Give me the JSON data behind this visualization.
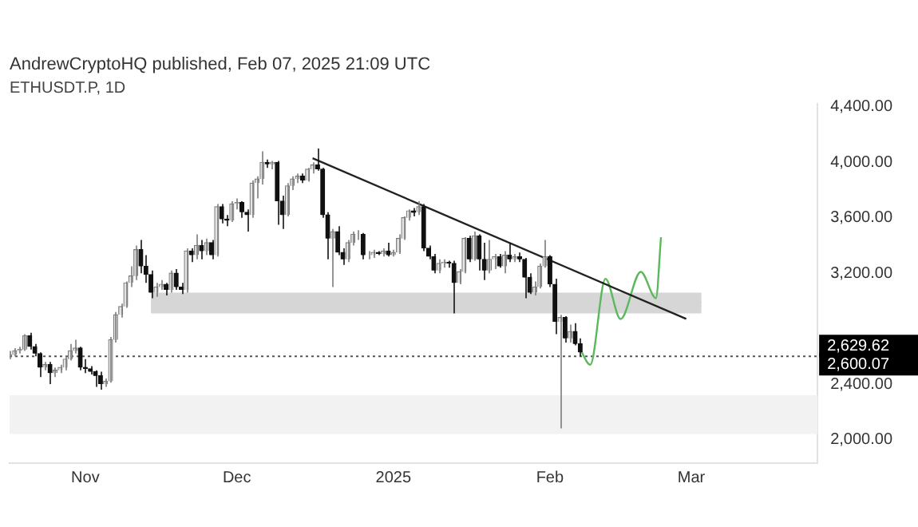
{
  "chart_data": {
    "type": "candlestick",
    "title": "AndrewCryptoHQ published, Feb 07, 2025 21:09 UTC",
    "subtitle": "ETHUSDT.P, 1D",
    "x": [
      "2024-10-17",
      "2024-10-18",
      "2024-10-19",
      "2024-10-20",
      "2024-10-21",
      "2024-10-22",
      "2024-10-23",
      "2024-10-24",
      "2024-10-25",
      "2024-10-26",
      "2024-10-27",
      "2024-10-28",
      "2024-10-29",
      "2024-10-30",
      "2024-10-31",
      "2024-11-01",
      "2024-11-02",
      "2024-11-03",
      "2024-11-04",
      "2024-11-05",
      "2024-11-06",
      "2024-11-07",
      "2024-11-08",
      "2024-11-09",
      "2024-11-10",
      "2024-11-11",
      "2024-11-12",
      "2024-11-13",
      "2024-11-14",
      "2024-11-15",
      "2024-11-16",
      "2024-11-17",
      "2024-11-18",
      "2024-11-19",
      "2024-11-20",
      "2024-11-21",
      "2024-11-22",
      "2024-11-23",
      "2024-11-24",
      "2024-11-25",
      "2024-11-26",
      "2024-11-27",
      "2024-11-28",
      "2024-11-29",
      "2024-11-30",
      "2024-12-01",
      "2024-12-02",
      "2024-12-03",
      "2024-12-04",
      "2024-12-05",
      "2024-12-06",
      "2024-12-07",
      "2024-12-08",
      "2024-12-09",
      "2024-12-10",
      "2024-12-11",
      "2024-12-12",
      "2024-12-13",
      "2024-12-14",
      "2024-12-15",
      "2024-12-16",
      "2024-12-17",
      "2024-12-18",
      "2024-12-19",
      "2024-12-20",
      "2024-12-21",
      "2024-12-22",
      "2024-12-23",
      "2024-12-24",
      "2024-12-25",
      "2024-12-26",
      "2024-12-27",
      "2024-12-28",
      "2024-12-29",
      "2024-12-30",
      "2024-12-31",
      "2025-01-01",
      "2025-01-02",
      "2025-01-03",
      "2025-01-04",
      "2025-01-05",
      "2025-01-06",
      "2025-01-07",
      "2025-01-08",
      "2025-01-09",
      "2025-01-10",
      "2025-01-11",
      "2025-01-12",
      "2025-01-13",
      "2025-01-14",
      "2025-01-15",
      "2025-01-16",
      "2025-01-17",
      "2025-01-18",
      "2025-01-19",
      "2025-01-20",
      "2025-01-21",
      "2025-01-22",
      "2025-01-23",
      "2025-01-24",
      "2025-01-25",
      "2025-01-26",
      "2025-01-27",
      "2025-01-28",
      "2025-01-29",
      "2025-01-30",
      "2025-01-31",
      "2025-02-01",
      "2025-02-02",
      "2025-02-03",
      "2025-02-04",
      "2025-02-05",
      "2025-02-06",
      "2025-02-07"
    ],
    "ohlc": [
      [
        2600,
        2640,
        2580,
        2610
      ],
      [
        2610,
        2660,
        2600,
        2640
      ],
      [
        2640,
        2670,
        2620,
        2650
      ],
      [
        2650,
        2760,
        2640,
        2750
      ],
      [
        2750,
        2770,
        2650,
        2670
      ],
      [
        2670,
        2690,
        2600,
        2620
      ],
      [
        2620,
        2630,
        2450,
        2520
      ],
      [
        2520,
        2560,
        2500,
        2540
      ],
      [
        2540,
        2560,
        2400,
        2480
      ],
      [
        2480,
        2520,
        2450,
        2500
      ],
      [
        2500,
        2540,
        2480,
        2520
      ],
      [
        2520,
        2600,
        2500,
        2580
      ],
      [
        2580,
        2690,
        2570,
        2640
      ],
      [
        2640,
        2720,
        2620,
        2660
      ],
      [
        2660,
        2670,
        2500,
        2520
      ],
      [
        2520,
        2580,
        2480,
        2510
      ],
      [
        2510,
        2530,
        2470,
        2490
      ],
      [
        2490,
        2500,
        2380,
        2460
      ],
      [
        2460,
        2490,
        2360,
        2400
      ],
      [
        2400,
        2440,
        2380,
        2420
      ],
      [
        2420,
        2740,
        2410,
        2720
      ],
      [
        2720,
        2920,
        2700,
        2900
      ],
      [
        2900,
        2980,
        2880,
        2960
      ],
      [
        2960,
        3140,
        2950,
        3130
      ],
      [
        3130,
        3250,
        3100,
        3180
      ],
      [
        3180,
        3400,
        3150,
        3370
      ],
      [
        3370,
        3440,
        3200,
        3250
      ],
      [
        3250,
        3330,
        3130,
        3190
      ],
      [
        3190,
        3220,
        3020,
        3060
      ],
      [
        3060,
        3130,
        3030,
        3100
      ],
      [
        3100,
        3150,
        3080,
        3120
      ],
      [
        3120,
        3130,
        3040,
        3080
      ],
      [
        3080,
        3220,
        3060,
        3200
      ],
      [
        3200,
        3230,
        3080,
        3100
      ],
      [
        3100,
        3130,
        3050,
        3080
      ],
      [
        3080,
        3380,
        3060,
        3360
      ],
      [
        3360,
        3380,
        3280,
        3330
      ],
      [
        3330,
        3480,
        3300,
        3400
      ],
      [
        3400,
        3440,
        3300,
        3360
      ],
      [
        3360,
        3450,
        3330,
        3420
      ],
      [
        3420,
        3440,
        3300,
        3330
      ],
      [
        3330,
        3700,
        3320,
        3680
      ],
      [
        3680,
        3700,
        3560,
        3590
      ],
      [
        3590,
        3620,
        3540,
        3580
      ],
      [
        3580,
        3720,
        3570,
        3700
      ],
      [
        3700,
        3740,
        3660,
        3710
      ],
      [
        3710,
        3720,
        3600,
        3640
      ],
      [
        3640,
        3660,
        3500,
        3620
      ],
      [
        3620,
        3870,
        3600,
        3850
      ],
      [
        3850,
        3900,
        3740,
        3880
      ],
      [
        3880,
        4080,
        3840,
        4000
      ],
      [
        4000,
        4020,
        3960,
        3990
      ],
      [
        3990,
        4010,
        3950,
        4000
      ],
      [
        4000,
        4010,
        3550,
        3720
      ],
      [
        3720,
        3760,
        3520,
        3620
      ],
      [
        3620,
        3850,
        3610,
        3830
      ],
      [
        3830,
        3900,
        3800,
        3880
      ],
      [
        3880,
        3920,
        3850,
        3900
      ],
      [
        3900,
        3920,
        3850,
        3870
      ],
      [
        3870,
        3960,
        3860,
        3950
      ],
      [
        3950,
        4000,
        3920,
        3980
      ],
      [
        3980,
        4100,
        3940,
        3950
      ],
      [
        3950,
        3960,
        3600,
        3620
      ],
      [
        3620,
        3640,
        3300,
        3450
      ],
      [
        3450,
        3520,
        3100,
        3500
      ],
      [
        3500,
        3540,
        3330,
        3350
      ],
      [
        3350,
        3380,
        3260,
        3300
      ],
      [
        3300,
        3440,
        3280,
        3420
      ],
      [
        3420,
        3500,
        3400,
        3480
      ],
      [
        3480,
        3510,
        3440,
        3480
      ],
      [
        3480,
        3490,
        3300,
        3330
      ],
      [
        3330,
        3360,
        3300,
        3330
      ],
      [
        3330,
        3370,
        3310,
        3350
      ],
      [
        3350,
        3360,
        3330,
        3340
      ],
      [
        3340,
        3380,
        3320,
        3360
      ],
      [
        3360,
        3420,
        3320,
        3330
      ],
      [
        3330,
        3370,
        3320,
        3350
      ],
      [
        3350,
        3480,
        3340,
        3450
      ],
      [
        3450,
        3610,
        3440,
        3600
      ],
      [
        3600,
        3660,
        3580,
        3650
      ],
      [
        3650,
        3670,
        3610,
        3640
      ],
      [
        3640,
        3720,
        3620,
        3680
      ],
      [
        3680,
        3700,
        3360,
        3380
      ],
      [
        3380,
        3400,
        3300,
        3320
      ],
      [
        3320,
        3340,
        3200,
        3220
      ],
      [
        3220,
        3300,
        3200,
        3270
      ],
      [
        3270,
        3300,
        3240,
        3280
      ],
      [
        3280,
        3290,
        3240,
        3270
      ],
      [
        3270,
        3290,
        2910,
        3130
      ],
      [
        3130,
        3230,
        3120,
        3210
      ],
      [
        3210,
        3460,
        3200,
        3450
      ],
      [
        3450,
        3470,
        3280,
        3300
      ],
      [
        3300,
        3500,
        3290,
        3470
      ],
      [
        3470,
        3480,
        3220,
        3300
      ],
      [
        3300,
        3420,
        3150,
        3220
      ],
      [
        3220,
        3440,
        3200,
        3300
      ],
      [
        3300,
        3340,
        3230,
        3320
      ],
      [
        3320,
        3340,
        3240,
        3250
      ],
      [
        3250,
        3360,
        3200,
        3330
      ],
      [
        3330,
        3420,
        3280,
        3300
      ],
      [
        3300,
        3340,
        3280,
        3320
      ],
      [
        3320,
        3350,
        3280,
        3300
      ],
      [
        3300,
        3310,
        3020,
        3170
      ],
      [
        3170,
        3200,
        3050,
        3060
      ],
      [
        3060,
        3140,
        3040,
        3100
      ],
      [
        3100,
        3270,
        3090,
        3250
      ],
      [
        3250,
        3440,
        3240,
        3320
      ],
      [
        3320,
        3330,
        3100,
        3120
      ],
      [
        3120,
        3160,
        2760,
        2850
      ],
      [
        2850,
        2900,
        2080,
        2880
      ],
      [
        2880,
        2890,
        2700,
        2730
      ],
      [
        2730,
        2830,
        2700,
        2780
      ],
      [
        2780,
        2840,
        2680,
        2690
      ],
      [
        2690,
        2730,
        2600,
        2629.62
      ]
    ],
    "series": [
      {
        "type": "line",
        "x": [
          "2024-11-14",
          "2025-03-03"
        ],
        "values": [
          2990,
          2990
        ],
        "lower": [
          2910,
          2910
        ],
        "upper": [
          3060,
          3060
        ],
        "color": "#d6d6d6"
      },
      {
        "type": "line",
        "x": [
          "2024-12-16",
          "2025-02-28"
        ],
        "values": [
          4030,
          2870
        ],
        "color": "#222222"
      },
      {
        "type": "line",
        "x": [
          "2025-02-07",
          "2025-02-09",
          "2025-02-12",
          "2025-02-15",
          "2025-02-19",
          "2025-02-22",
          "2025-02-23"
        ],
        "values": [
          2650,
          2540,
          3160,
          2870,
          3210,
          3020,
          3460
        ],
        "color": "#5cb85c"
      }
    ],
    "bands": [
      {
        "axis": "y",
        "from": 2040,
        "to": 2320,
        "color": "#f2f2f2"
      }
    ],
    "ref_lines": [
      {
        "axis": "y",
        "value": 2600.07,
        "label": "2,600.07",
        "line_style": "dotted"
      }
    ],
    "annotations": [
      "2,629.62"
    ],
    "xlim": [
      "2024-10-17",
      "2025-03-26"
    ],
    "xticks": [
      {
        "value": "2024-11-01",
        "label": "Nov"
      },
      {
        "value": "2024-12-01",
        "label": "Dec"
      },
      {
        "value": "2025-01-01",
        "label": "2025"
      },
      {
        "value": "2025-02-01",
        "label": "Feb"
      },
      {
        "value": "2025-03-01",
        "label": "Mar"
      }
    ],
    "ylim": [
      1830,
      4420
    ],
    "yticks": [
      {
        "value": 2000,
        "label": "2,000.00"
      },
      {
        "value": 2400,
        "label": "2,400.00"
      },
      {
        "value": 3200,
        "label": "3,200.00"
      },
      {
        "value": 3600,
        "label": "3,600.00"
      },
      {
        "value": 4000,
        "label": "4,000.00"
      },
      {
        "value": 4400,
        "label": "4,400.00"
      }
    ],
    "grid": false,
    "legend": false
  }
}
